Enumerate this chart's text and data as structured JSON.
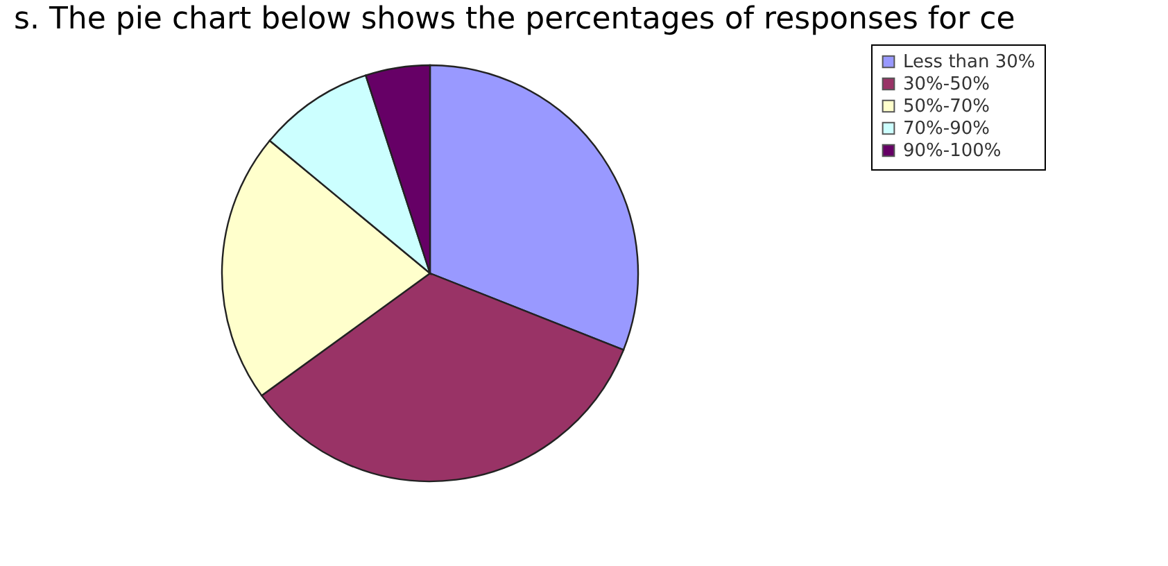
{
  "chart_data": {
    "type": "pie",
    "title": "s. The pie chart below shows the percentages of responses for ce",
    "categories": [
      "Less than 30%",
      "30%-50%",
      "50%-70%",
      "70%-90%",
      "90%-100%"
    ],
    "values": [
      31,
      34,
      21,
      9,
      5
    ],
    "colors": [
      "#9999ff",
      "#993366",
      "#ffffcc",
      "#ccffff",
      "#660066"
    ],
    "legend": "right"
  }
}
